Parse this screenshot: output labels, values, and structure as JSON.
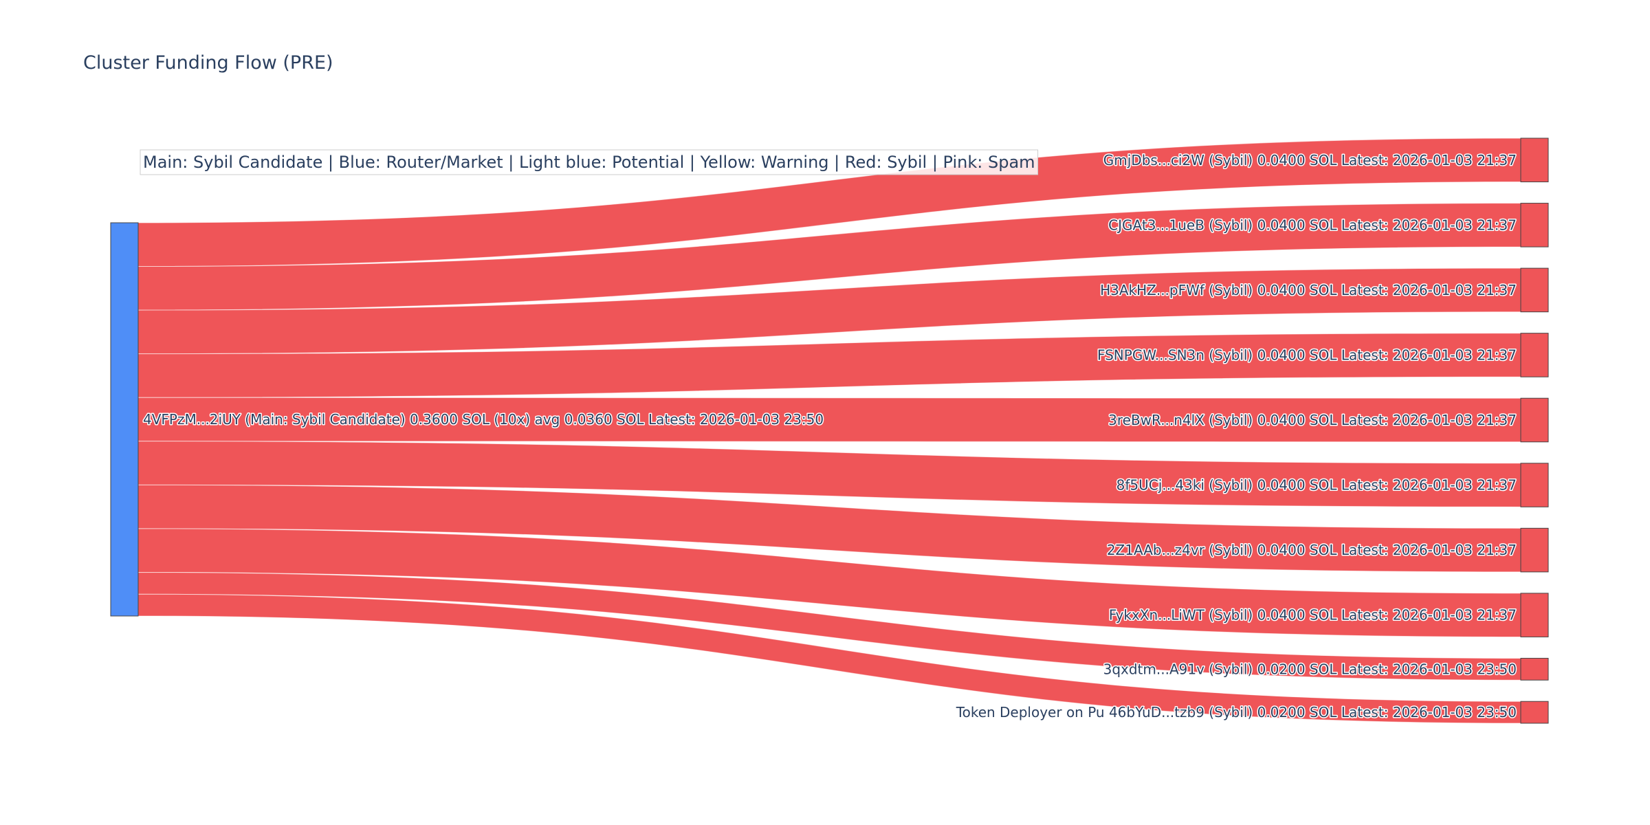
{
  "chart_data": {
    "type": "sankey",
    "title": "Cluster Funding Flow (PRE)",
    "annotation": "Main: Sybil Candidate  |  Blue: Router/Market | Light blue: Potential | Yellow: Warning | Red: Sybil | Pink: Spam",
    "colors": {
      "main_node": "#4f8ef7",
      "sybil_node": "#ef5558",
      "link": "#ef5558"
    },
    "source": {
      "label": "4VFPzM...2iUY (Main: Sybil Candidate) 0.3600 SOL (10x) avg 0.0360 SOL Latest: 2026-01-03 23:50",
      "value": 0.36
    },
    "targets": [
      {
        "label": "GmjDbs...ci2W (Sybil) 0.0400 SOL Latest: 2026-01-03 21:37",
        "value": 0.04
      },
      {
        "label": "CJGAt3...1ueB (Sybil) 0.0400 SOL Latest: 2026-01-03 21:37",
        "value": 0.04
      },
      {
        "label": "H3AkHZ...pFWf (Sybil) 0.0400 SOL Latest: 2026-01-03 21:37",
        "value": 0.04
      },
      {
        "label": "FSNPGW...SN3n (Sybil) 0.0400 SOL Latest: 2026-01-03 21:37",
        "value": 0.04
      },
      {
        "label": "3reBwR...n4lX (Sybil) 0.0400 SOL Latest: 2026-01-03 21:37",
        "value": 0.04
      },
      {
        "label": "8f5UCj...43ki (Sybil) 0.0400 SOL Latest: 2026-01-03 21:37",
        "value": 0.04
      },
      {
        "label": "2Z1AAb...z4vr (Sybil) 0.0400 SOL Latest: 2026-01-03 21:37",
        "value": 0.04
      },
      {
        "label": "FykxXn...LiWT (Sybil) 0.0400 SOL Latest: 2026-01-03 21:37",
        "value": 0.04
      },
      {
        "label": "3qxdtm...A91v (Sybil) 0.0200 SOL Latest: 2026-01-03 23:50",
        "value": 0.02
      },
      {
        "label": "Token Deployer on Pu 46bYuD...tzb9 (Sybil) 0.0200 SOL Latest: 2026-01-03 23:50",
        "value": 0.02
      }
    ]
  }
}
